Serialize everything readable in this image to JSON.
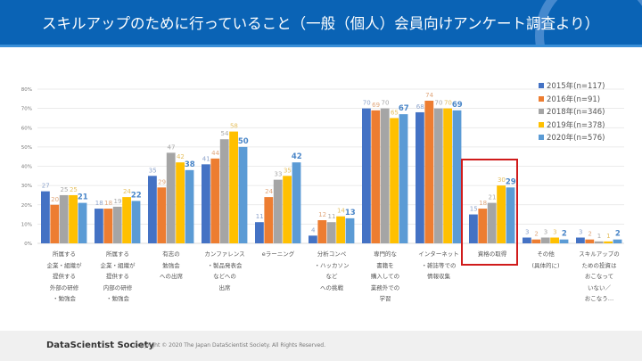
{
  "header": {
    "title": "スキルアップのために行っていること（一般（個人）会員向けアンケート調査より）"
  },
  "footer": {
    "brand": "DataScientist Society",
    "copyright": "Copyright © 2020  The Japan DataScientist Society. All Rights Reserved."
  },
  "chart_data": {
    "type": "bar",
    "title": "",
    "ylim": [
      0,
      80
    ],
    "yticks": [
      "0%",
      "10%",
      "20%",
      "30%",
      "40%",
      "50%",
      "60%",
      "70%",
      "80%"
    ],
    "grid": true,
    "legend_position": "top-right",
    "highlighted_category": "資格の取得",
    "categories": [
      [
        "所属する",
        "企業・組織が",
        "提供する",
        "外部の研修",
        "・勉強会"
      ],
      [
        "所属する",
        "企業・組織が",
        "提供する",
        "内部の研修",
        "・勉強会"
      ],
      [
        "有志の",
        "勉強会",
        "への出席"
      ],
      [
        "カンファレンス",
        "・製品発表会",
        "などへの",
        "出席"
      ],
      [
        "eラーニング"
      ],
      [
        "分析コンペ",
        "・ハッカソン",
        "など",
        "への挑戦"
      ],
      [
        "専門的な",
        "書籍を",
        "購入しての",
        "業務外での",
        "学習"
      ],
      [
        "インターネット",
        "・雑誌等での",
        "情報収集"
      ],
      [
        "資格の取得"
      ],
      [
        "その他",
        "(具体的に)"
      ],
      [
        "スキルアップの",
        "ための投資は",
        "おこなって",
        "いない／",
        "おこなう…"
      ]
    ],
    "series": [
      {
        "name": "2015年(n=117)",
        "color": "#4472c4",
        "values": [
          27,
          18,
          35,
          41,
          11,
          4,
          70,
          68,
          15,
          3,
          3
        ]
      },
      {
        "name": "2016年(n=91)",
        "color": "#ed7d31",
        "values": [
          20,
          18,
          29,
          44,
          24,
          12,
          69,
          74,
          18,
          2,
          2
        ]
      },
      {
        "name": "2018年(n=346)",
        "color": "#a5a5a5",
        "values": [
          25,
          19,
          47,
          54,
          33,
          11,
          70,
          70,
          21,
          3,
          1
        ]
      },
      {
        "name": "2019年(n=378)",
        "color": "#ffc000",
        "values": [
          25,
          24,
          42,
          58,
          35,
          14,
          65,
          70,
          30,
          3,
          1
        ]
      },
      {
        "name": "2020年(n=576)",
        "color": "#5b9bd5",
        "values": [
          21,
          22,
          38,
          50,
          42,
          13,
          67,
          69,
          29,
          2,
          2
        ]
      }
    ]
  }
}
